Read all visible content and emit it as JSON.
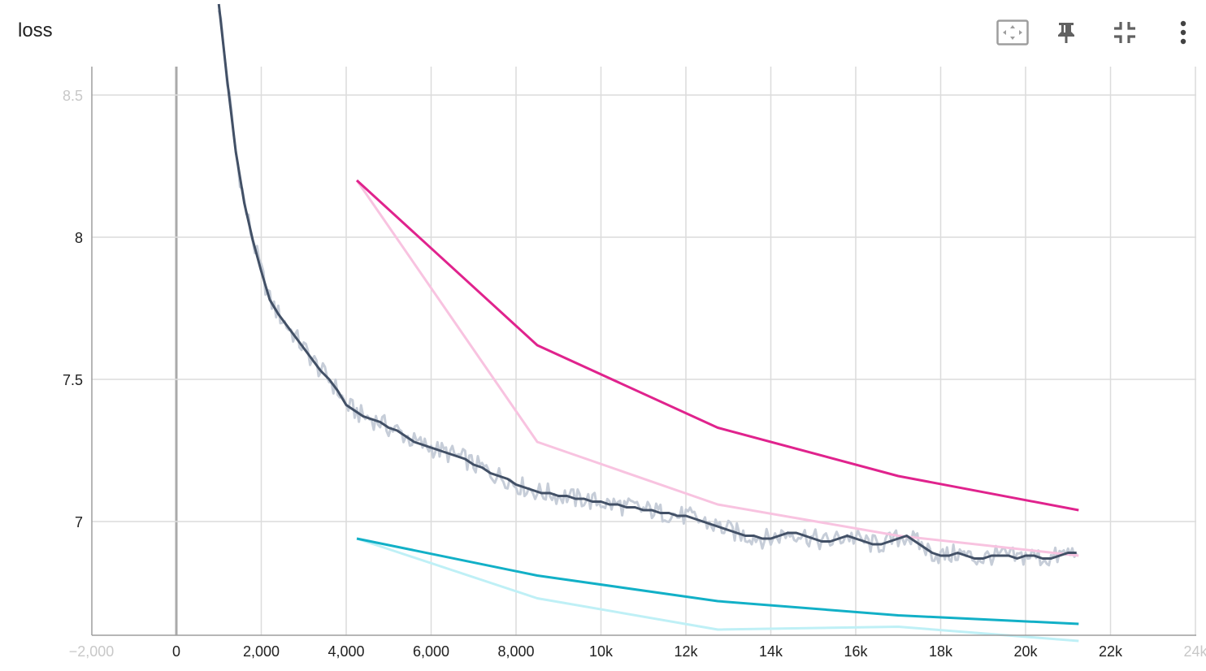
{
  "card": {
    "title": "loss"
  },
  "toolbar": {
    "buttons": [
      {
        "name": "fit-domain-button",
        "icon": "fit-to-data-icon"
      },
      {
        "name": "pin-button",
        "icon": "pin-icon"
      },
      {
        "name": "collapse-button",
        "icon": "collapse-icon"
      },
      {
        "name": "more-button",
        "icon": "more-vert-icon"
      }
    ]
  },
  "chart_data": {
    "type": "line",
    "title": "loss",
    "xlabel": "",
    "ylabel": "",
    "xlim": [
      -2000,
      23800
    ],
    "ylim": [
      6.6,
      8.6
    ],
    "grid": true,
    "x_ticks": [
      {
        "v": -2000,
        "label": "−2,000",
        "faded": true
      },
      {
        "v": 0,
        "label": "0"
      },
      {
        "v": 2000,
        "label": "2,000"
      },
      {
        "v": 4000,
        "label": "4,000"
      },
      {
        "v": 6000,
        "label": "6,000"
      },
      {
        "v": 8000,
        "label": "8,000"
      },
      {
        "v": 10000,
        "label": "10k"
      },
      {
        "v": 12000,
        "label": "12k"
      },
      {
        "v": 14000,
        "label": "14k"
      },
      {
        "v": 16000,
        "label": "16k"
      },
      {
        "v": 18000,
        "label": "18k"
      },
      {
        "v": 20000,
        "label": "20k"
      },
      {
        "v": 22000,
        "label": "22k"
      },
      {
        "v": 24000,
        "label": "24k",
        "faded": true
      }
    ],
    "y_ticks": [
      {
        "v": 8.5,
        "label": "8.5",
        "faded": true
      },
      {
        "v": 8,
        "label": "8"
      },
      {
        "v": 7.5,
        "label": "7.5"
      },
      {
        "v": 7,
        "label": "7"
      }
    ],
    "series": [
      {
        "color": "#425066",
        "raw_color": "#c6cdd8",
        "x": [
          1000,
          1200,
          1400,
          1600,
          1800,
          2000,
          2200,
          2400,
          2600,
          2800,
          3000,
          3200,
          3400,
          3600,
          3800,
          4000,
          4200,
          4400,
          4600,
          4800,
          5000,
          5200,
          5400,
          5600,
          5800,
          6000,
          6200,
          6400,
          6600,
          6800,
          7000,
          7200,
          7400,
          7600,
          7800,
          8000,
          8200,
          8400,
          8600,
          8800,
          9000,
          9200,
          9400,
          9600,
          9800,
          10000,
          10200,
          10400,
          10600,
          10800,
          11000,
          11200,
          11400,
          11600,
          11800,
          12000,
          12200,
          12400,
          12600,
          12800,
          13000,
          13200,
          13400,
          13600,
          13800,
          14000,
          14200,
          14400,
          14600,
          14800,
          15000,
          15200,
          15400,
          15600,
          15800,
          16000,
          16200,
          16400,
          16600,
          16800,
          17000,
          17200,
          17400,
          17600,
          17800,
          18000,
          18200,
          18400,
          18600,
          18800,
          19000,
          19200,
          19400,
          19600,
          19800,
          20000,
          20200,
          20400,
          20600,
          20800,
          21000,
          21200
        ],
        "y": [
          8.82,
          8.55,
          8.3,
          8.12,
          7.99,
          7.88,
          7.78,
          7.73,
          7.69,
          7.65,
          7.61,
          7.57,
          7.53,
          7.5,
          7.46,
          7.41,
          7.39,
          7.37,
          7.36,
          7.35,
          7.33,
          7.32,
          7.3,
          7.28,
          7.27,
          7.26,
          7.25,
          7.24,
          7.23,
          7.22,
          7.2,
          7.19,
          7.17,
          7.16,
          7.15,
          7.13,
          7.12,
          7.11,
          7.1,
          7.1,
          7.09,
          7.09,
          7.08,
          7.08,
          7.07,
          7.07,
          7.06,
          7.06,
          7.05,
          7.05,
          7.04,
          7.04,
          7.03,
          7.03,
          7.02,
          7.02,
          7.01,
          7.0,
          6.99,
          6.98,
          6.97,
          6.96,
          6.95,
          6.95,
          6.94,
          6.94,
          6.95,
          6.96,
          6.96,
          6.95,
          6.94,
          6.93,
          6.93,
          6.94,
          6.95,
          6.94,
          6.93,
          6.92,
          6.92,
          6.93,
          6.94,
          6.95,
          6.93,
          6.91,
          6.89,
          6.88,
          6.88,
          6.89,
          6.88,
          6.87,
          6.87,
          6.88,
          6.88,
          6.88,
          6.87,
          6.88,
          6.88,
          6.87,
          6.87,
          6.88,
          6.89,
          6.89
        ]
      },
      {
        "color": "#e0238d",
        "raw_color": "#f8c3e0",
        "x": [
          4250,
          8500,
          12750,
          17000,
          21250
        ],
        "y": [
          8.2,
          7.62,
          7.33,
          7.16,
          7.04
        ],
        "raw_y": [
          8.2,
          7.28,
          7.06,
          6.95,
          6.88
        ]
      },
      {
        "color": "#12b0c7",
        "raw_color": "#bff0f6",
        "x": [
          4250,
          8500,
          12750,
          17000,
          21250
        ],
        "y": [
          6.94,
          6.81,
          6.72,
          6.67,
          6.64
        ],
        "raw_y": [
          6.94,
          6.73,
          6.62,
          6.63,
          6.58
        ]
      }
    ]
  }
}
